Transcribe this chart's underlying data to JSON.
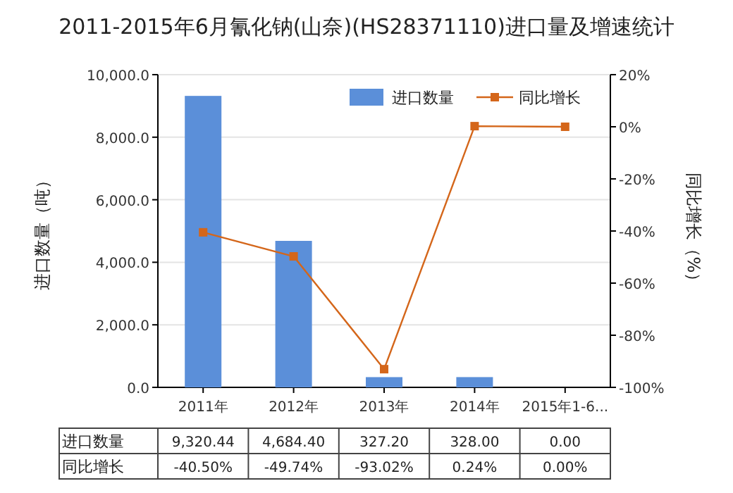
{
  "chart_data": {
    "type": "bar",
    "title": "2011-2015年6月氰化钠(山奈)(HS28371110)进口量及增速统计",
    "categories": [
      "2011年",
      "2012年",
      "2013年",
      "2014年",
      "2015年1-6..."
    ],
    "series": [
      {
        "name": "进口数量",
        "color": "#5b8fd9",
        "values": [
          9320.44,
          4684.4,
          327.2,
          328.0,
          0.0
        ],
        "value_labels": [
          "9,320.44",
          "4,684.40",
          "327.20",
          "328.00",
          "0.00"
        ]
      },
      {
        "name": "同比增长",
        "type": "line",
        "axis": "y2",
        "color": "#d4661a",
        "marker": "square",
        "values": [
          -40.5,
          -49.74,
          -93.02,
          0.24,
          0.0
        ],
        "value_labels": [
          "-40.50%",
          "-49.74%",
          "-93.02%",
          "0.24%",
          "0.00%"
        ]
      }
    ],
    "ylabel": "进口数量（吨）",
    "y2label": "同比增长（%）",
    "ylim": [
      0,
      10000
    ],
    "yticks": [
      {
        "value": 0,
        "label": "0.0"
      },
      {
        "value": 2000,
        "label": "2,000.0"
      },
      {
        "value": 4000,
        "label": "4,000.0"
      },
      {
        "value": 6000,
        "label": "6,000.0"
      },
      {
        "value": 8000,
        "label": "8,000.0"
      },
      {
        "value": 10000,
        "label": "10,000.0"
      }
    ],
    "y2lim": [
      -100,
      20
    ],
    "y2ticks": [
      {
        "value": -100,
        "label": "-100%"
      },
      {
        "value": -80,
        "label": "-80%"
      },
      {
        "value": -60,
        "label": "-60%"
      },
      {
        "value": -40,
        "label": "-40%"
      },
      {
        "value": -20,
        "label": "-20%"
      },
      {
        "value": 0,
        "label": "0%"
      },
      {
        "value": 20,
        "label": "20%"
      }
    ],
    "grid": "y",
    "legend": "top right"
  }
}
